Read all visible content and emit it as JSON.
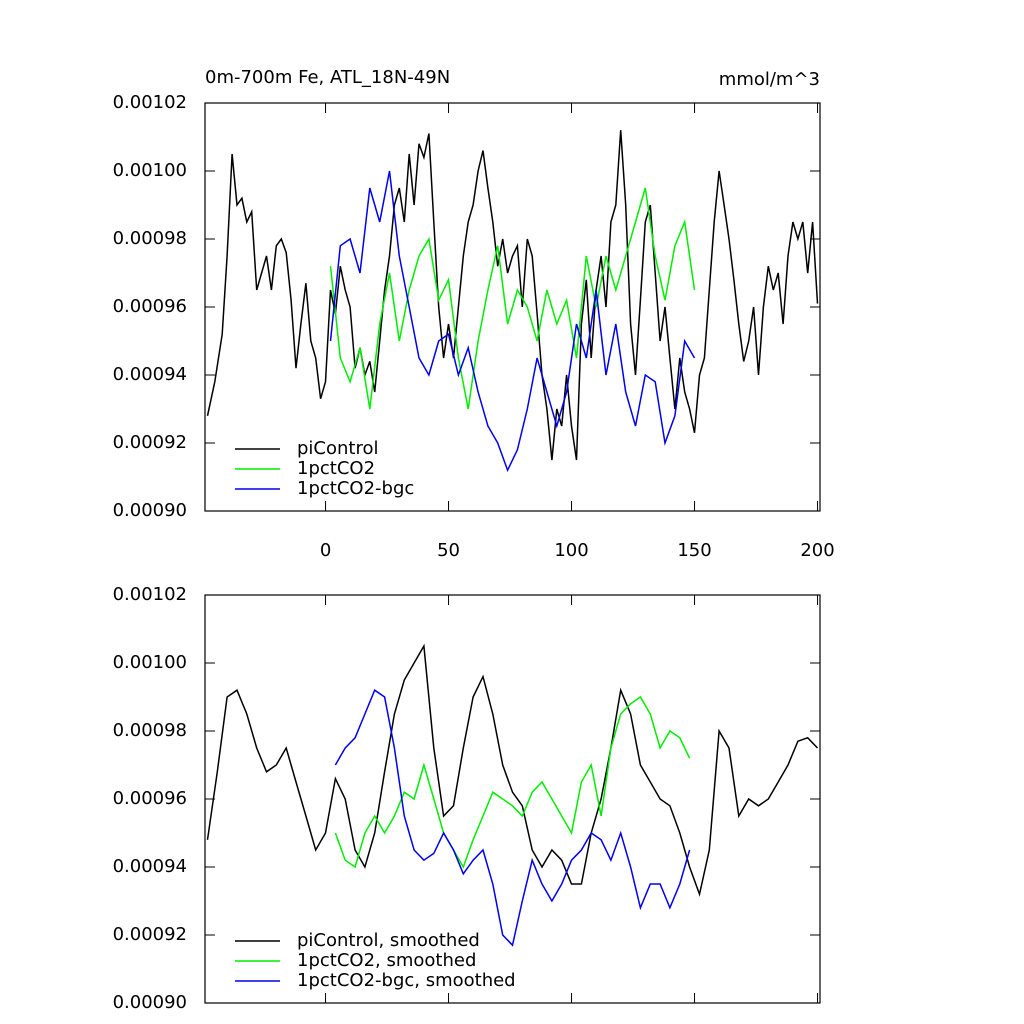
{
  "chart_data": [
    {
      "type": "line",
      "title": "0m-700m Fe, ATL_18N-49N",
      "units": "mmol/m^3",
      "xlim": [
        -49,
        201
      ],
      "xticks": [
        0,
        50,
        100,
        150,
        200
      ],
      "ylim": [
        0.0009,
        0.00102
      ],
      "yticks": [
        {
          "value": 0.0009,
          "label": "0.00090"
        },
        0.00092,
        0.00094,
        0.00096,
        0.00098,
        {
          "value": 0.001,
          "label": "0.00100"
        },
        0.00102
      ],
      "series": [
        {
          "name": "piControl",
          "color": "#000000",
          "x": [
            -48,
            -45,
            -42,
            -40,
            -38,
            -36,
            -34,
            -32,
            -30,
            -28,
            -26,
            -24,
            -22,
            -20,
            -18,
            -16,
            -14,
            -12,
            -10,
            -8,
            -6,
            -4,
            -2,
            0,
            2,
            4,
            6,
            8,
            10,
            12,
            14,
            16,
            18,
            20,
            22,
            24,
            26,
            28,
            30,
            32,
            34,
            36,
            38,
            40,
            42,
            44,
            46,
            48,
            50,
            52,
            54,
            56,
            58,
            60,
            62,
            64,
            66,
            68,
            70,
            72,
            74,
            76,
            78,
            80,
            82,
            84,
            86,
            88,
            90,
            92,
            94,
            96,
            98,
            100,
            102,
            104,
            106,
            108,
            110,
            112,
            114,
            116,
            118,
            120,
            122,
            124,
            126,
            128,
            130,
            132,
            134,
            136,
            138,
            140,
            142,
            144,
            146,
            148,
            150,
            152,
            154,
            156,
            158,
            160,
            162,
            164,
            166,
            168,
            170,
            172,
            174,
            176,
            178,
            180,
            182,
            184,
            186,
            188,
            190,
            192,
            194,
            196,
            198,
            200
          ],
          "values": [
            0.000928,
            0.000938,
            0.000952,
            0.000975,
            0.001005,
            0.00099,
            0.000992,
            0.000985,
            0.000988,
            0.000965,
            0.00097,
            0.000975,
            0.000965,
            0.000978,
            0.00098,
            0.000976,
            0.000962,
            0.000942,
            0.000955,
            0.000967,
            0.00095,
            0.000945,
            0.000933,
            0.000938,
            0.000965,
            0.000958,
            0.000972,
            0.000965,
            0.00096,
            0.000942,
            0.000948,
            0.00094,
            0.000944,
            0.000935,
            0.00095,
            0.000965,
            0.000975,
            0.00099,
            0.000995,
            0.000985,
            0.001005,
            0.00099,
            0.001008,
            0.001004,
            0.001011,
            0.000985,
            0.00096,
            0.000945,
            0.000955,
            0.000945,
            0.00096,
            0.000975,
            0.000985,
            0.00099,
            0.001,
            0.001006,
            0.000995,
            0.000985,
            0.000972,
            0.00098,
            0.00097,
            0.000975,
            0.000978,
            0.00096,
            0.00098,
            0.000975,
            0.000958,
            0.00094,
            0.00093,
            0.000915,
            0.00093,
            0.000925,
            0.00094,
            0.000925,
            0.000915,
            0.000955,
            0.000968,
            0.000945,
            0.000965,
            0.000975,
            0.00096,
            0.000985,
            0.00099,
            0.001012,
            0.00099,
            0.000955,
            0.00094,
            0.000962,
            0.000985,
            0.00099,
            0.00097,
            0.00095,
            0.00096,
            0.000945,
            0.00093,
            0.000945,
            0.000935,
            0.00093,
            0.000923,
            0.00094,
            0.000945,
            0.000965,
            0.000985,
            0.001,
            0.00099,
            0.00098,
            0.000968,
            0.000955,
            0.000944,
            0.00095,
            0.00096,
            0.00094,
            0.00096,
            0.000972,
            0.000965,
            0.00097,
            0.000955,
            0.000975,
            0.000985,
            0.00098,
            0.000985,
            0.00097,
            0.000985,
            0.000961
          ]
        },
        {
          "name": "1pctCO2",
          "color": "#00ee00",
          "x": [
            2,
            6,
            10,
            14,
            18,
            22,
            26,
            30,
            34,
            38,
            42,
            46,
            50,
            54,
            58,
            62,
            66,
            70,
            74,
            78,
            82,
            86,
            90,
            94,
            98,
            102,
            106,
            110,
            114,
            118,
            122,
            126,
            130,
            134,
            138,
            142,
            146,
            150
          ],
          "values": [
            0.000972,
            0.000945,
            0.000938,
            0.000948,
            0.00093,
            0.000955,
            0.00097,
            0.00095,
            0.000965,
            0.000975,
            0.00098,
            0.000962,
            0.000968,
            0.000945,
            0.00093,
            0.00095,
            0.000965,
            0.000978,
            0.000955,
            0.000965,
            0.00096,
            0.00095,
            0.000965,
            0.000955,
            0.000962,
            0.000945,
            0.000975,
            0.00096,
            0.000975,
            0.000965,
            0.000975,
            0.000985,
            0.000995,
            0.000975,
            0.000962,
            0.000978,
            0.000985,
            0.000965
          ]
        },
        {
          "name": "1pctCO2-bgc",
          "color": "#0000ee",
          "x": [
            2,
            6,
            10,
            14,
            18,
            22,
            26,
            30,
            34,
            38,
            42,
            46,
            50,
            54,
            58,
            62,
            66,
            70,
            74,
            78,
            82,
            86,
            90,
            94,
            98,
            102,
            106,
            110,
            114,
            118,
            122,
            126,
            130,
            134,
            138,
            142,
            146,
            150
          ],
          "values": [
            0.00095,
            0.000978,
            0.00098,
            0.00097,
            0.000995,
            0.000985,
            0.001,
            0.000975,
            0.00096,
            0.000945,
            0.00094,
            0.00095,
            0.000952,
            0.00094,
            0.000948,
            0.000935,
            0.000925,
            0.00092,
            0.000912,
            0.000918,
            0.00093,
            0.000945,
            0.000935,
            0.000925,
            0.000935,
            0.000955,
            0.000945,
            0.000965,
            0.00094,
            0.000955,
            0.000935,
            0.000925,
            0.00094,
            0.000938,
            0.00092,
            0.000928,
            0.00095,
            0.000945
          ]
        }
      ]
    },
    {
      "type": "line",
      "xlim": [
        -49,
        201
      ],
      "ylim": [
        0.0009,
        0.00102
      ],
      "yticks": [
        {
          "value": 0.0009,
          "label": "0.00090"
        },
        0.00092,
        0.00094,
        0.00096,
        0.00098,
        {
          "value": 0.001,
          "label": "0.00100"
        },
        0.00102
      ],
      "series": [
        {
          "name": "piControl, smoothed",
          "color": "#000000",
          "x": [
            -48,
            -44,
            -40,
            -36,
            -32,
            -28,
            -24,
            -20,
            -16,
            -12,
            -8,
            -4,
            0,
            4,
            8,
            12,
            16,
            20,
            24,
            28,
            32,
            36,
            40,
            44,
            48,
            52,
            56,
            60,
            64,
            68,
            72,
            76,
            80,
            84,
            88,
            92,
            96,
            100,
            104,
            108,
            112,
            116,
            120,
            124,
            128,
            132,
            136,
            140,
            144,
            148,
            152,
            156,
            160,
            164,
            168,
            172,
            176,
            180,
            184,
            188,
            192,
            196,
            200
          ],
          "values": [
            0.000948,
            0.000968,
            0.00099,
            0.000992,
            0.000985,
            0.000975,
            0.000968,
            0.00097,
            0.000975,
            0.000965,
            0.000955,
            0.000945,
            0.00095,
            0.000966,
            0.00096,
            0.000945,
            0.00094,
            0.00095,
            0.000968,
            0.000985,
            0.000995,
            0.001,
            0.001005,
            0.000975,
            0.000955,
            0.000958,
            0.000975,
            0.00099,
            0.000996,
            0.000985,
            0.00097,
            0.000962,
            0.000958,
            0.000945,
            0.00094,
            0.000945,
            0.000942,
            0.000935,
            0.000935,
            0.00095,
            0.00096,
            0.000975,
            0.000992,
            0.000985,
            0.00097,
            0.000965,
            0.00096,
            0.000958,
            0.00095,
            0.00094,
            0.000932,
            0.000945,
            0.00098,
            0.000975,
            0.000955,
            0.00096,
            0.000958,
            0.00096,
            0.000965,
            0.00097,
            0.000977,
            0.000978,
            0.000975
          ]
        },
        {
          "name": "1pctCO2, smoothed",
          "color": "#00ee00",
          "x": [
            4,
            8,
            12,
            16,
            20,
            24,
            28,
            32,
            36,
            40,
            44,
            48,
            52,
            56,
            60,
            64,
            68,
            72,
            76,
            80,
            84,
            88,
            92,
            96,
            100,
            104,
            108,
            112,
            116,
            120,
            124,
            128,
            132,
            136,
            140,
            144,
            148
          ],
          "values": [
            0.00095,
            0.000942,
            0.00094,
            0.00095,
            0.000955,
            0.00095,
            0.000955,
            0.000962,
            0.00096,
            0.00097,
            0.00096,
            0.00095,
            0.000945,
            0.00094,
            0.000948,
            0.000955,
            0.000962,
            0.00096,
            0.000958,
            0.000955,
            0.000962,
            0.000965,
            0.00096,
            0.000955,
            0.00095,
            0.000965,
            0.00097,
            0.000955,
            0.000975,
            0.000985,
            0.000988,
            0.00099,
            0.000985,
            0.000975,
            0.00098,
            0.000978,
            0.000972
          ]
        },
        {
          "name": "1pctCO2-bgc, smoothed",
          "color": "#0000ee",
          "x": [
            4,
            8,
            12,
            16,
            20,
            24,
            28,
            32,
            36,
            40,
            44,
            48,
            52,
            56,
            60,
            64,
            68,
            72,
            76,
            80,
            84,
            88,
            92,
            96,
            100,
            104,
            108,
            112,
            116,
            120,
            124,
            128,
            132,
            136,
            140,
            144,
            148
          ],
          "values": [
            0.00097,
            0.000975,
            0.000978,
            0.000985,
            0.000992,
            0.00099,
            0.000975,
            0.000955,
            0.000945,
            0.000942,
            0.000944,
            0.00095,
            0.000945,
            0.000938,
            0.000942,
            0.000945,
            0.000935,
            0.00092,
            0.000917,
            0.00093,
            0.000942,
            0.000935,
            0.00093,
            0.000935,
            0.000942,
            0.000945,
            0.00095,
            0.000948,
            0.000942,
            0.00095,
            0.00094,
            0.000928,
            0.000935,
            0.000935,
            0.000928,
            0.000935,
            0.000945
          ]
        }
      ]
    }
  ]
}
